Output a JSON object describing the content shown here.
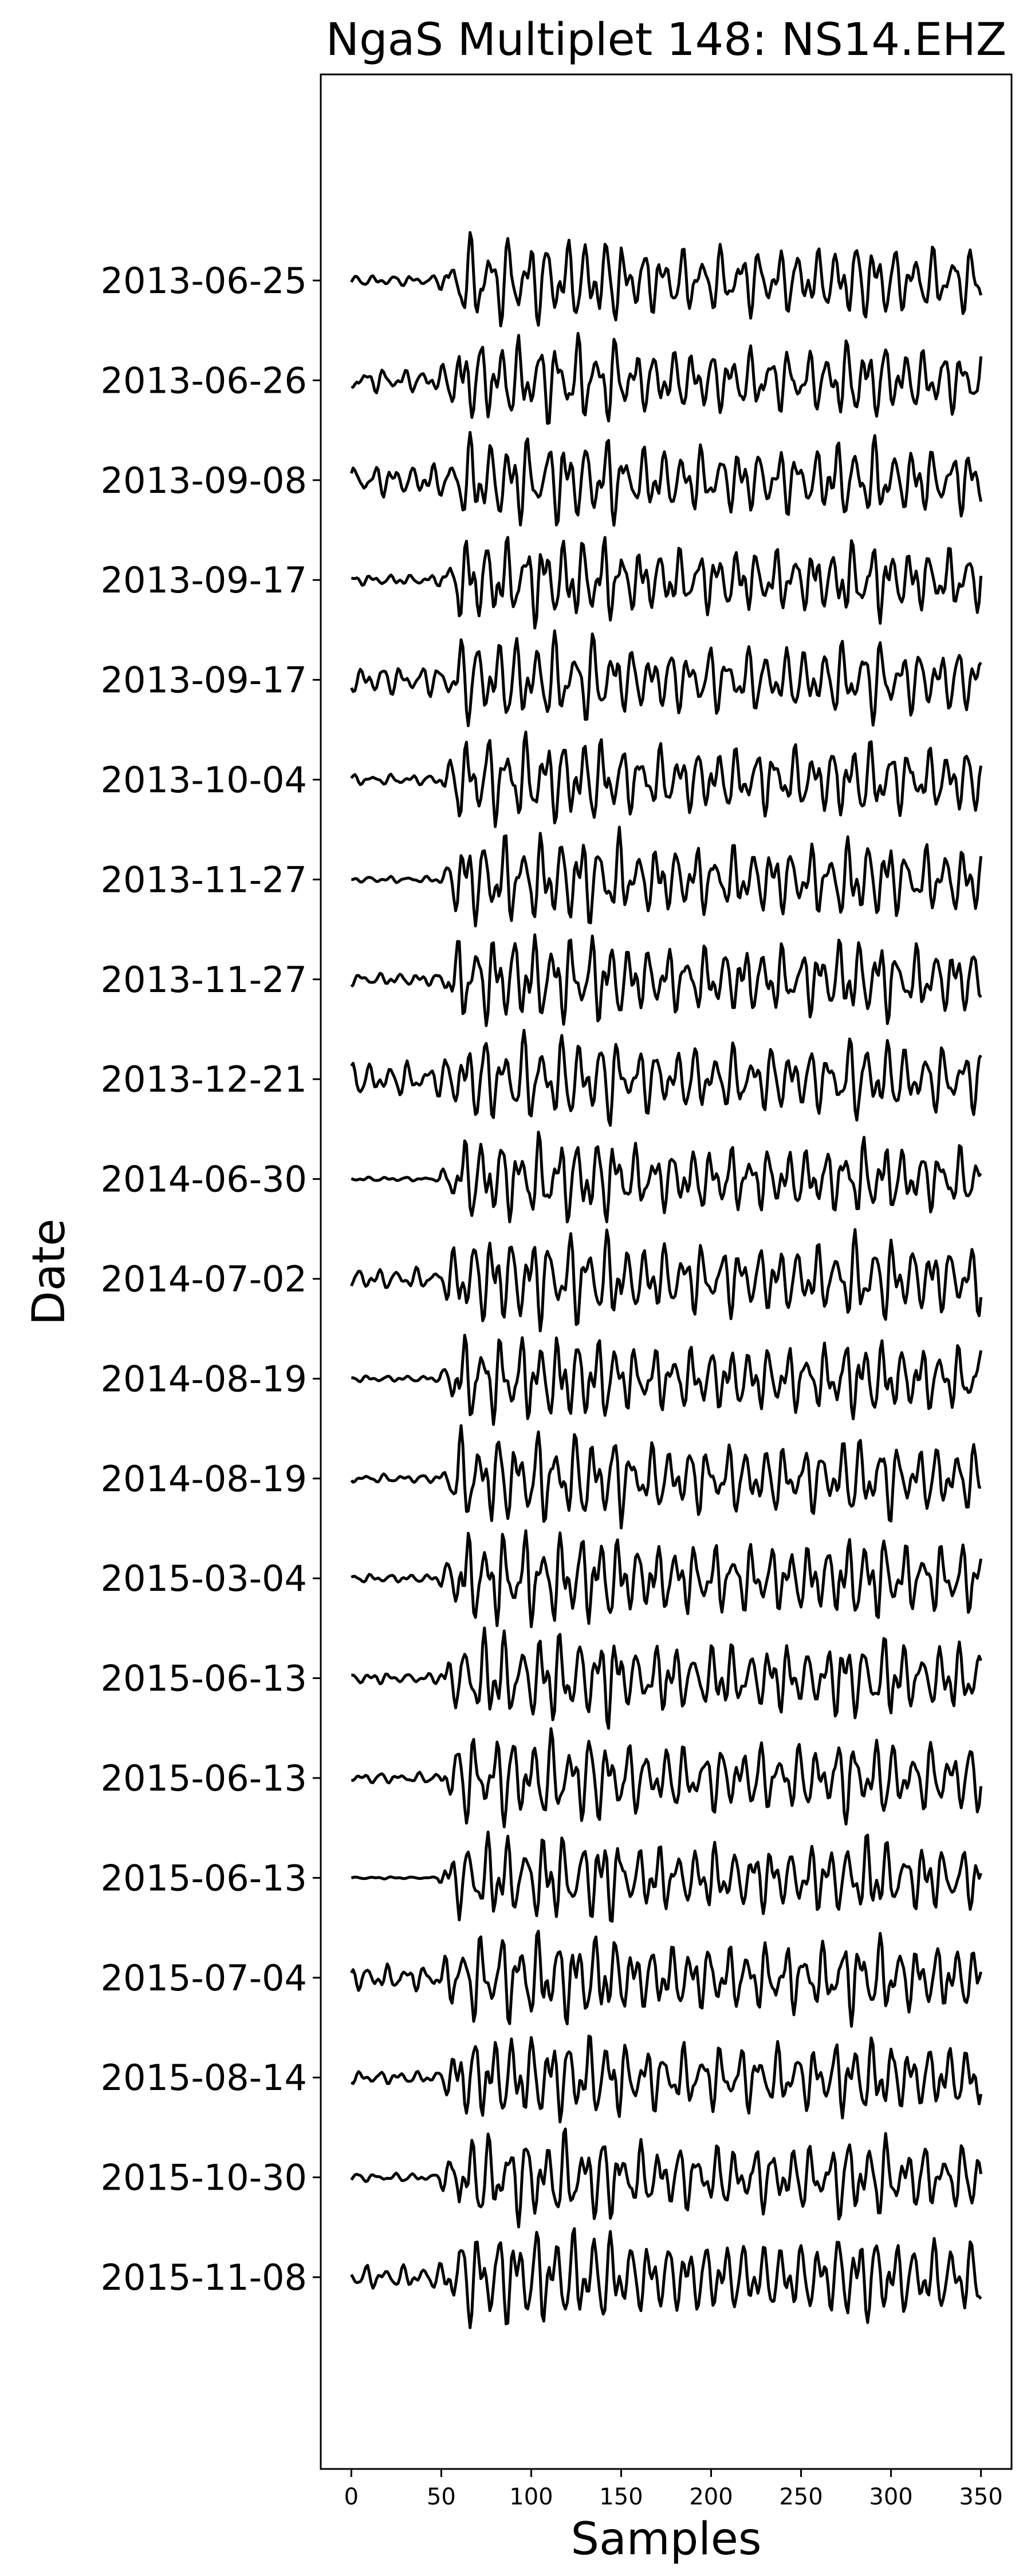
{
  "chart_data": {
    "type": "line",
    "title": "NgaS Multiplet 148: NS14.EHZ",
    "xlabel": "Samples",
    "ylabel": "Date",
    "xlim": [
      -17,
      367
    ],
    "xticks": [
      0,
      50,
      100,
      150,
      200,
      250,
      300,
      350
    ],
    "trace_color": "#000000",
    "n_samples": 350,
    "grid": false,
    "series": [
      {
        "date": "2013-06-25",
        "pre_amp": 0.1,
        "sig_amp": 0.62,
        "seed": 11
      },
      {
        "date": "2013-06-26",
        "pre_amp": 0.22,
        "sig_amp": 0.6,
        "seed": 23
      },
      {
        "date": "2013-09-08",
        "pre_amp": 0.3,
        "sig_amp": 0.62,
        "seed": 37
      },
      {
        "date": "2013-09-17",
        "pre_amp": 0.1,
        "sig_amp": 0.6,
        "seed": 41
      },
      {
        "date": "2013-09-17",
        "pre_amp": 0.28,
        "sig_amp": 0.62,
        "seed": 53
      },
      {
        "date": "2013-10-04",
        "pre_amp": 0.1,
        "sig_amp": 0.62,
        "seed": 67
      },
      {
        "date": "2013-11-27",
        "pre_amp": 0.06,
        "sig_amp": 0.64,
        "seed": 71
      },
      {
        "date": "2013-11-27",
        "pre_amp": 0.12,
        "sig_amp": 0.64,
        "seed": 83
      },
      {
        "date": "2013-12-21",
        "pre_amp": 0.32,
        "sig_amp": 0.62,
        "seed": 97
      },
      {
        "date": "2014-06-30",
        "pre_amp": 0.04,
        "sig_amp": 0.6,
        "seed": 101
      },
      {
        "date": "2014-07-02",
        "pre_amp": 0.2,
        "sig_amp": 0.66,
        "seed": 113
      },
      {
        "date": "2014-08-19",
        "pre_amp": 0.06,
        "sig_amp": 0.62,
        "seed": 127
      },
      {
        "date": "2014-08-19",
        "pre_amp": 0.08,
        "sig_amp": 0.64,
        "seed": 131
      },
      {
        "date": "2015-03-04",
        "pre_amp": 0.08,
        "sig_amp": 0.66,
        "seed": 149
      },
      {
        "date": "2015-06-13",
        "pre_amp": 0.1,
        "sig_amp": 0.64,
        "seed": 151
      },
      {
        "date": "2015-06-13",
        "pre_amp": 0.1,
        "sig_amp": 0.64,
        "seed": 163
      },
      {
        "date": "2015-06-13",
        "pre_amp": 0.02,
        "sig_amp": 0.62,
        "seed": 173
      },
      {
        "date": "2015-07-04",
        "pre_amp": 0.24,
        "sig_amp": 0.64,
        "seed": 181
      },
      {
        "date": "2015-08-14",
        "pre_amp": 0.12,
        "sig_amp": 0.62,
        "seed": 191
      },
      {
        "date": "2015-10-30",
        "pre_amp": 0.08,
        "sig_amp": 0.62,
        "seed": 197
      },
      {
        "date": "2015-11-08",
        "pre_amp": 0.22,
        "sig_amp": 0.7,
        "seed": 211
      }
    ]
  }
}
